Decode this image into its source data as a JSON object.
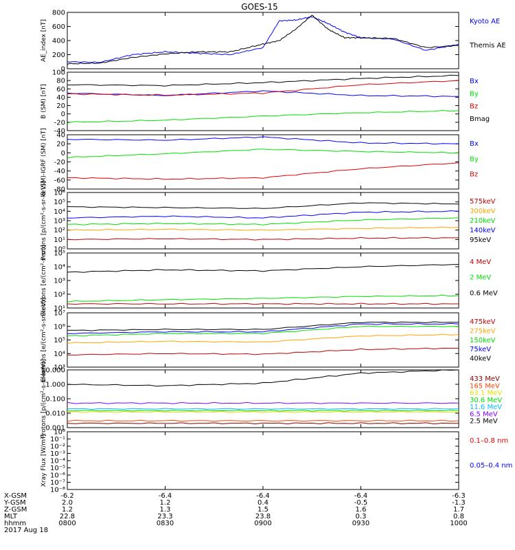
{
  "title": "GOES-15",
  "footer": {
    "rows": [
      {
        "label": "X-GSM",
        "values": [
          "-6.2",
          "-6.4",
          "-6.4",
          "-6.4",
          "-6.3"
        ]
      },
      {
        "label": "Y-GSM",
        "values": [
          "2.0",
          "1.2",
          "0.4",
          "-0.5",
          "-1.3"
        ]
      },
      {
        "label": "Z-GSM",
        "values": [
          "1.2",
          "1.3",
          "1.5",
          "1.6",
          "1.7"
        ]
      },
      {
        "label": "MLT",
        "values": [
          "22.8",
          "23.3",
          "23.8",
          "0.3",
          "0.8"
        ]
      },
      {
        "label": "hhmm",
        "values": [
          "0800",
          "0830",
          "0900",
          "0930",
          "1000"
        ]
      }
    ],
    "date": "2017 Aug 18"
  },
  "chart_data": [
    {
      "type": "line",
      "ylabel": "AE_index [nT]",
      "ylim": [
        0,
        800
      ],
      "yticks": [
        "0",
        "200",
        "400",
        "600",
        "800"
      ],
      "x": [
        "0800",
        "0810",
        "0820",
        "0830",
        "0840",
        "0850",
        "0900",
        "0905",
        "0910",
        "0915",
        "0920",
        "0925",
        "0930",
        "0940",
        "0950",
        "1000"
      ],
      "series": [
        {
          "name": "Kyoto AE",
          "color": "#0000ff",
          "values": [
            100,
            90,
            200,
            240,
            220,
            200,
            300,
            680,
            690,
            740,
            640,
            520,
            440,
            420,
            260,
            350
          ]
        },
        {
          "name": "Themis AE",
          "color": "#000000",
          "values": [
            70,
            80,
            160,
            210,
            240,
            240,
            350,
            400,
            560,
            760,
            560,
            440,
            440,
            430,
            300,
            330
          ]
        }
      ]
    },
    {
      "type": "line",
      "ylabel": "B (SM) [nT]",
      "ylim": [
        -40,
        100
      ],
      "yticks": [
        "100",
        "80",
        "60",
        "40",
        "20",
        "0",
        "-20",
        "-40"
      ],
      "x": [
        "0800",
        "0830",
        "0900",
        "0930",
        "1000"
      ],
      "series": [
        {
          "name": "Bx",
          "color": "#0000ff",
          "values": [
            50,
            44,
            55,
            44,
            42
          ]
        },
        {
          "name": "By",
          "color": "#00e000",
          "values": [
            -20,
            -15,
            -5,
            3,
            8
          ]
        },
        {
          "name": "Bz",
          "color": "#e00000",
          "values": [
            48,
            45,
            50,
            70,
            80
          ]
        },
        {
          "name": "Bmag",
          "color": "#000000",
          "values": [
            70,
            68,
            75,
            85,
            92
          ]
        }
      ]
    },
    {
      "type": "line",
      "ylabel": "B (SM)-IGRF (SM) [nT]",
      "ylim": [
        -80,
        40
      ],
      "yticks": [
        "40",
        "20",
        "0",
        "-20",
        "-40",
        "-60",
        "-80"
      ],
      "x": [
        "0800",
        "0830",
        "0900",
        "0930",
        "1000"
      ],
      "series": [
        {
          "name": "Bx",
          "color": "#0000ff",
          "values": [
            30,
            28,
            35,
            22,
            20
          ]
        },
        {
          "name": "By",
          "color": "#00e000",
          "values": [
            -10,
            -2,
            8,
            3,
            0
          ]
        },
        {
          "name": "Bz",
          "color": "#e00000",
          "values": [
            -55,
            -58,
            -55,
            -35,
            -22
          ]
        }
      ]
    },
    {
      "type": "line",
      "ylabel": "Protons [p/(cm²-s-sr-keV)]",
      "yscale": "log",
      "ylim": [
        1,
        1000000
      ],
      "yticks": [
        "10⁰",
        "10¹",
        "10²",
        "10³",
        "10⁴",
        "10⁵",
        "10⁶"
      ],
      "x": [
        "0800",
        "0830",
        "0900",
        "0930",
        "1000"
      ],
      "series": [
        {
          "name": "575keV",
          "color": "#c00000",
          "values": [
            10,
            12,
            10,
            14,
            15
          ]
        },
        {
          "name": "300keV",
          "color": "#ffa500",
          "values": [
            100,
            120,
            100,
            150,
            200
          ]
        },
        {
          "name": "210keV",
          "color": "#00e000",
          "values": [
            400,
            500,
            400,
            1200,
            2000
          ]
        },
        {
          "name": "140keV",
          "color": "#0000ff",
          "values": [
            2000,
            3000,
            2000,
            8000,
            10000
          ]
        },
        {
          "name": "95keV",
          "color": "#000000",
          "values": [
            30000,
            25000,
            20000,
            80000,
            60000
          ]
        }
      ]
    },
    {
      "type": "line",
      "ylabel": "Electrons [e/(cm²-s-sr)]",
      "yscale": "log",
      "ylim": [
        10,
        100000
      ],
      "yticks": [
        "10¹",
        "10²",
        "10³",
        "10⁴",
        "10⁵"
      ],
      "x": [
        "0800",
        "0830",
        "0900",
        "0930",
        "1000"
      ],
      "series": [
        {
          "name": "4 MeV",
          "color": "#c00000",
          "values": [
            20,
            20,
            20,
            20,
            20
          ]
        },
        {
          "name": "2 MeV",
          "color": "#00e000",
          "values": [
            30,
            40,
            50,
            70,
            80
          ]
        },
        {
          "name": "0.6 MeV",
          "color": "#000000",
          "values": [
            4000,
            6000,
            5000,
            10000,
            15000
          ]
        }
      ]
    },
    {
      "type": "line",
      "ylabel": "Electrons [e/(cm²-s-sr-keV)]",
      "yscale": "log",
      "ylim": [
        1000,
        10000000
      ],
      "yticks": [
        "10³",
        "10⁴",
        "10⁵",
        "10⁶",
        "10⁷"
      ],
      "x": [
        "0800",
        "0830",
        "0900",
        "0930",
        "1000"
      ],
      "series": [
        {
          "name": "475keV",
          "color": "#c00000",
          "values": [
            8000,
            10000,
            9000,
            20000,
            25000
          ]
        },
        {
          "name": "275keV",
          "color": "#ffa500",
          "values": [
            60000,
            80000,
            70000,
            200000,
            250000
          ]
        },
        {
          "name": "150keV",
          "color": "#00e000",
          "values": [
            200000,
            300000,
            300000,
            1000000,
            1000000
          ]
        },
        {
          "name": "75keV",
          "color": "#0000ff",
          "values": [
            300000,
            400000,
            400000,
            1500000,
            1500000
          ]
        },
        {
          "name": "40keV",
          "color": "#000000",
          "values": [
            500000,
            600000,
            600000,
            2000000,
            2000000
          ]
        }
      ]
    },
    {
      "type": "line",
      "ylabel": "Protons [p/(cm²-s-sr-keV)]",
      "yscale": "log",
      "ylim": [
        0.001,
        10
      ],
      "yticks": [
        "0.001",
        "0.010",
        "0.100",
        "1.000",
        "10.000"
      ],
      "x": [
        "0800",
        "0830",
        "0900",
        "0930",
        "1000"
      ],
      "series": [
        {
          "name": "433 MeV",
          "color": "#800000",
          "values": [
            0.002,
            0.002,
            0.002,
            0.002,
            0.002
          ]
        },
        {
          "name": "165 MeV",
          "color": "#ff4500",
          "values": [
            0.003,
            0.003,
            0.003,
            0.003,
            0.003
          ]
        },
        {
          "name": "63.1 MeV",
          "color": "#e0e000",
          "values": [
            0.012,
            0.012,
            0.012,
            0.012,
            0.012
          ]
        },
        {
          "name": "30.6 MeV",
          "color": "#00e000",
          "values": [
            0.015,
            0.015,
            0.015,
            0.015,
            0.015
          ]
        },
        {
          "name": "11.6 MeV",
          "color": "#00bfff",
          "values": [
            0.02,
            0.02,
            0.02,
            0.02,
            0.02
          ]
        },
        {
          "name": "6.5 MeV",
          "color": "#8000ff",
          "values": [
            0.05,
            0.05,
            0.05,
            0.05,
            0.05
          ]
        },
        {
          "name": "2.5 MeV",
          "color": "#000000",
          "values": [
            1,
            0.8,
            1.2,
            6,
            10
          ]
        }
      ]
    },
    {
      "type": "line",
      "ylabel": "Xray Flux [W/m²]",
      "yscale": "log",
      "ylim": [
        1e-08,
        0.01
      ],
      "yticks": [
        "10⁻⁸",
        "10⁻⁷",
        "10⁻⁶",
        "10⁻⁵",
        "10⁻⁴",
        "10⁻³",
        "10⁻²",
        "10⁻¹",
        "10⁰"
      ],
      "x": [],
      "series": [
        {
          "name": "0.1–0.8 nm",
          "color": "#e00000",
          "values": []
        },
        {
          "name": "0.05–0.4 nm",
          "color": "#0000ff",
          "values": []
        }
      ]
    }
  ]
}
